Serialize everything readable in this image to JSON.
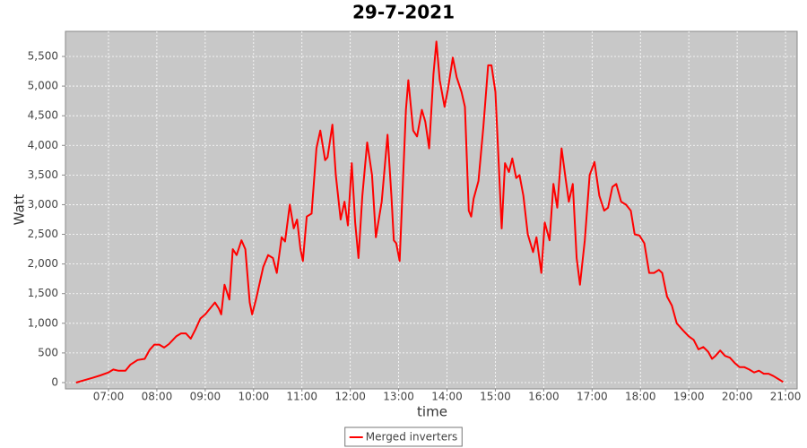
{
  "chart_data": {
    "type": "line",
    "title": "29-7-2021",
    "x_label": "time",
    "y_label": "Watt",
    "grid": true,
    "legend": "bottom",
    "xlim": [
      6.11,
      21.24
    ],
    "ylim": [
      -106,
      5923
    ],
    "xticks": [
      {
        "value": 7,
        "label": "07:00"
      },
      {
        "value": 8,
        "label": "08:00"
      },
      {
        "value": 9,
        "label": "09:00"
      },
      {
        "value": 10,
        "label": "10:00"
      },
      {
        "value": 11,
        "label": "11:00"
      },
      {
        "value": 12,
        "label": "12:00"
      },
      {
        "value": 13,
        "label": "13:00"
      },
      {
        "value": 14,
        "label": "14:00"
      },
      {
        "value": 15,
        "label": "15:00"
      },
      {
        "value": 16,
        "label": "16:00"
      },
      {
        "value": 17,
        "label": "17:00"
      },
      {
        "value": 18,
        "label": "18:00"
      },
      {
        "value": 19,
        "label": "19:00"
      },
      {
        "value": 20,
        "label": "20:00"
      },
      {
        "value": 21,
        "label": "21:00"
      }
    ],
    "yticks": [
      0,
      500,
      {
        "value": 1000,
        "label": "1,000"
      },
      {
        "value": 1500,
        "label": "1,500"
      },
      {
        "value": 2000,
        "label": "2,000"
      },
      {
        "value": 2500,
        "label": "2,500"
      },
      {
        "value": 3000,
        "label": "3,000"
      },
      {
        "value": 3500,
        "label": "3,500"
      },
      {
        "value": 4000,
        "label": "4,000"
      },
      {
        "value": 4500,
        "label": "4,500"
      },
      {
        "value": 5000,
        "label": "5,000"
      },
      {
        "value": 5500,
        "label": "5,500"
      }
    ],
    "x": [
      6.33,
      6.5,
      6.67,
      6.83,
      7.0,
      7.1,
      7.2,
      7.35,
      7.45,
      7.6,
      7.75,
      7.85,
      7.95,
      8.05,
      8.15,
      8.25,
      8.4,
      8.5,
      8.6,
      8.7,
      8.8,
      8.9,
      9.0,
      9.1,
      9.2,
      9.28,
      9.33,
      9.4,
      9.5,
      9.57,
      9.65,
      9.75,
      9.83,
      9.92,
      9.97,
      10.05,
      10.2,
      10.3,
      10.4,
      10.48,
      10.58,
      10.65,
      10.75,
      10.83,
      10.9,
      10.97,
      11.02,
      11.1,
      11.2,
      11.3,
      11.38,
      11.48,
      11.53,
      11.63,
      11.7,
      11.8,
      11.88,
      11.95,
      12.03,
      12.1,
      12.17,
      12.25,
      12.35,
      12.45,
      12.53,
      12.65,
      12.77,
      12.85,
      12.9,
      12.95,
      13.02,
      13.15,
      13.2,
      13.3,
      13.38,
      13.48,
      13.55,
      13.63,
      13.72,
      13.78,
      13.85,
      13.95,
      14.02,
      14.12,
      14.2,
      14.3,
      14.37,
      14.45,
      14.5,
      14.55,
      14.65,
      14.75,
      14.85,
      14.92,
      15.0,
      15.08,
      15.13,
      15.2,
      15.28,
      15.35,
      15.43,
      15.5,
      15.58,
      15.67,
      15.78,
      15.85,
      15.95,
      16.02,
      16.12,
      16.2,
      16.28,
      16.37,
      16.45,
      16.52,
      16.6,
      16.68,
      16.75,
      16.85,
      16.95,
      17.05,
      17.15,
      17.25,
      17.33,
      17.42,
      17.5,
      17.6,
      17.7,
      17.8,
      17.88,
      17.98,
      18.08,
      18.18,
      18.28,
      18.38,
      18.45,
      18.55,
      18.65,
      18.75,
      18.88,
      19.0,
      19.1,
      19.2,
      19.3,
      19.4,
      19.48,
      19.55,
      19.65,
      19.75,
      19.85,
      19.95,
      20.05,
      20.15,
      20.25,
      20.35,
      20.45,
      20.55,
      20.65,
      20.75,
      20.85,
      20.95
    ],
    "series": [
      {
        "name": "Merged inverters",
        "color": "#ff0000",
        "values": [
          0,
          40,
          80,
          120,
          170,
          220,
          200,
          200,
          300,
          380,
          400,
          550,
          640,
          640,
          590,
          650,
          780,
          830,
          830,
          740,
          900,
          1080,
          1150,
          1250,
          1350,
          1250,
          1150,
          1650,
          1400,
          2250,
          2150,
          2400,
          2250,
          1350,
          1150,
          1400,
          1950,
          2150,
          2100,
          1850,
          2450,
          2380,
          3000,
          2600,
          2750,
          2250,
          2050,
          2800,
          2850,
          3950,
          4250,
          3750,
          3800,
          4350,
          3500,
          2750,
          3050,
          2650,
          3700,
          2700,
          2100,
          3150,
          4050,
          3500,
          2450,
          3050,
          4180,
          3150,
          2400,
          2350,
          2050,
          4600,
          5100,
          4250,
          4150,
          4600,
          4400,
          3950,
          5200,
          5750,
          5100,
          4650,
          4950,
          5480,
          5150,
          4900,
          4650,
          2900,
          2800,
          3100,
          3400,
          4300,
          5350,
          5350,
          4900,
          3500,
          2600,
          3700,
          3550,
          3780,
          3450,
          3500,
          3150,
          2500,
          2200,
          2450,
          1850,
          2700,
          2400,
          3350,
          2950,
          3950,
          3450,
          3050,
          3350,
          2100,
          1650,
          2400,
          3500,
          3720,
          3150,
          2900,
          2950,
          3300,
          3350,
          3050,
          3000,
          2900,
          2500,
          2480,
          2350,
          1850,
          1850,
          1900,
          1850,
          1450,
          1300,
          1000,
          880,
          780,
          720,
          560,
          600,
          520,
          400,
          450,
          540,
          450,
          420,
          330,
          260,
          260,
          220,
          170,
          200,
          150,
          150,
          110,
          60,
          10
        ]
      }
    ]
  }
}
